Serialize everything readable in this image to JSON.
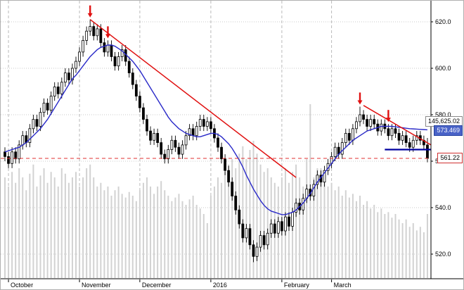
{
  "chart_data": {
    "type": "candlestick",
    "title": "",
    "xlabel": "",
    "ylabel": "",
    "ylim": [
      512,
      628
    ],
    "grid": true,
    "colors": {
      "up_candle": "#ffffff",
      "down_candle": "#000000",
      "candle_border": "#000000",
      "ma_line": "#2929c8",
      "support_line": "#0000a0",
      "trend_line": "#e01010",
      "last_price_line": "#e03030",
      "volume_bar": "#d2d2d2",
      "grid_line": "#c9c9c9",
      "month_line": "#b9b9b9",
      "axis_line": "#000000",
      "arrow": "#e01010"
    },
    "y_ticks": [
      {
        "value": 620,
        "label": "620.0"
      },
      {
        "value": 600,
        "label": "600.0"
      },
      {
        "value": 580,
        "label": "580.0"
      },
      {
        "value": 560,
        "label": "560.0"
      },
      {
        "value": 540,
        "label": "540.0"
      },
      {
        "value": 520,
        "label": "520.0"
      }
    ],
    "months": [
      {
        "label": "October",
        "start_index": 1
      },
      {
        "label": "November",
        "start_index": 21
      },
      {
        "label": "December",
        "start_index": 38
      },
      {
        "label": "2016",
        "start_index": 58
      },
      {
        "label": "February",
        "start_index": 78
      },
      {
        "label": "March",
        "start_index": 92
      }
    ],
    "labels": {
      "indicator": "145,625.02",
      "ma": "573.469",
      "last": "561.22"
    },
    "ma_value": 573.469,
    "last_price": 561.22,
    "support_line": {
      "price": 565,
      "from_index": 107
    },
    "trend_lines": [
      {
        "from_index": 24,
        "from_price": 621,
        "to_index": 82,
        "to_price": 553
      },
      {
        "from_index": 101,
        "from_price": 584,
        "to_index": 120,
        "to_price": 567
      }
    ],
    "arrow_indices": [
      24,
      29,
      100,
      108
    ],
    "candles": [
      [
        564,
        566,
        560,
        562
      ],
      [
        562,
        564,
        557,
        559
      ],
      [
        559,
        566,
        557,
        564
      ],
      [
        564,
        566,
        559,
        561
      ],
      [
        561,
        569,
        559,
        567
      ],
      [
        567,
        573,
        565,
        571
      ],
      [
        571,
        573,
        566,
        568
      ],
      [
        568,
        576,
        566,
        574
      ],
      [
        574,
        580,
        572,
        578
      ],
      [
        578,
        580,
        573,
        575
      ],
      [
        575,
        583,
        573,
        581
      ],
      [
        581,
        587,
        579,
        585
      ],
      [
        585,
        587,
        580,
        582
      ],
      [
        582,
        590,
        580,
        588
      ],
      [
        588,
        594,
        586,
        592
      ],
      [
        592,
        594,
        587,
        589
      ],
      [
        589,
        596,
        587,
        594
      ],
      [
        594,
        600,
        592,
        598
      ],
      [
        598,
        600,
        593,
        595
      ],
      [
        595,
        602,
        593,
        600
      ],
      [
        600,
        605,
        598,
        603
      ],
      [
        603,
        609,
        601,
        607
      ],
      [
        607,
        614,
        605,
        612
      ],
      [
        612,
        618,
        610,
        616
      ],
      [
        616,
        621,
        614,
        618
      ],
      [
        618,
        620,
        612,
        614
      ],
      [
        614,
        619,
        612,
        617
      ],
      [
        617,
        619,
        609,
        611
      ],
      [
        611,
        613,
        605,
        607
      ],
      [
        607,
        612,
        605,
        610
      ],
      [
        610,
        612,
        603,
        605
      ],
      [
        605,
        607,
        599,
        601
      ],
      [
        601,
        607,
        599,
        605
      ],
      [
        605,
        610,
        603,
        608
      ],
      [
        608,
        610,
        601,
        603
      ],
      [
        603,
        605,
        596,
        598
      ],
      [
        598,
        600,
        591,
        593
      ],
      [
        593,
        595,
        586,
        588
      ],
      [
        588,
        590,
        581,
        583
      ],
      [
        583,
        585,
        576,
        578
      ],
      [
        578,
        580,
        571,
        573
      ],
      [
        573,
        575,
        567,
        569
      ],
      [
        569,
        574,
        567,
        572
      ],
      [
        572,
        574,
        566,
        568
      ],
      [
        568,
        570,
        561,
        563
      ],
      [
        563,
        565,
        559,
        561
      ],
      [
        561,
        567,
        559,
        565
      ],
      [
        565,
        571,
        563,
        569
      ],
      [
        569,
        571,
        564,
        566
      ],
      [
        566,
        568,
        561,
        563
      ],
      [
        563,
        569,
        561,
        567
      ],
      [
        567,
        573,
        565,
        571
      ],
      [
        571,
        576,
        569,
        574
      ],
      [
        574,
        576,
        569,
        571
      ],
      [
        571,
        577,
        569,
        575
      ],
      [
        575,
        580,
        573,
        578
      ],
      [
        578,
        580,
        573,
        575
      ],
      [
        575,
        579,
        573,
        577
      ],
      [
        577,
        579,
        572,
        574
      ],
      [
        574,
        576,
        568,
        570
      ],
      [
        570,
        572,
        564,
        566
      ],
      [
        566,
        568,
        559,
        561
      ],
      [
        561,
        563,
        554,
        556
      ],
      [
        556,
        558,
        549,
        551
      ],
      [
        551,
        553,
        543,
        545
      ],
      [
        545,
        547,
        537,
        539
      ],
      [
        539,
        541,
        531,
        533
      ],
      [
        533,
        535,
        525,
        527
      ],
      [
        527,
        533,
        525,
        531
      ],
      [
        531,
        533,
        522,
        524
      ],
      [
        524,
        526,
        516.5,
        519
      ],
      [
        519,
        525,
        517,
        523
      ],
      [
        523,
        530,
        521,
        528
      ],
      [
        528,
        530,
        522,
        524
      ],
      [
        524,
        531,
        522,
        529
      ],
      [
        529,
        535,
        527,
        533
      ],
      [
        533,
        535,
        527,
        529
      ],
      [
        529,
        536,
        527,
        534
      ],
      [
        534,
        536,
        528,
        530
      ],
      [
        530,
        538,
        528,
        536
      ],
      [
        536,
        538,
        530,
        532
      ],
      [
        532,
        540,
        530,
        538
      ],
      [
        538,
        544,
        536,
        542
      ],
      [
        542,
        544,
        537,
        539
      ],
      [
        539,
        546,
        537,
        544
      ],
      [
        544,
        550,
        542,
        548
      ],
      [
        548,
        550,
        543,
        545
      ],
      [
        545,
        552,
        543,
        550
      ],
      [
        550,
        556,
        548,
        554
      ],
      [
        554,
        556,
        549,
        551
      ],
      [
        551,
        558,
        549,
        556
      ],
      [
        556,
        561,
        554,
        559
      ],
      [
        559,
        564,
        557,
        562
      ],
      [
        562,
        568,
        560,
        566
      ],
      [
        566,
        568,
        561,
        563
      ],
      [
        563,
        570,
        561,
        568
      ],
      [
        568,
        574,
        566,
        572
      ],
      [
        572,
        574,
        567,
        569
      ],
      [
        569,
        576,
        567,
        574
      ],
      [
        574,
        579,
        572,
        577
      ],
      [
        577,
        583.5,
        575,
        580
      ],
      [
        580,
        582,
        576,
        578
      ],
      [
        578,
        580,
        573,
        575
      ],
      [
        575,
        580,
        573,
        578
      ],
      [
        578,
        580,
        574,
        576
      ],
      [
        576,
        578,
        571,
        573
      ],
      [
        573,
        578,
        571,
        576
      ],
      [
        576,
        578,
        572,
        574
      ],
      [
        574,
        576,
        569,
        571
      ],
      [
        571,
        576,
        569,
        574
      ],
      [
        574,
        576,
        570,
        572
      ],
      [
        572,
        574,
        567,
        569
      ],
      [
        569,
        573,
        567,
        571
      ],
      [
        571,
        573,
        566,
        568
      ],
      [
        568,
        570,
        564,
        566
      ],
      [
        566,
        571,
        564,
        569
      ],
      [
        569,
        573,
        567,
        571
      ],
      [
        571,
        573,
        567,
        569
      ],
      [
        569,
        571,
        565,
        567
      ],
      [
        567,
        570,
        559.5,
        561.2
      ]
    ],
    "ma": [
      564,
      564.5,
      565,
      565.5,
      566,
      567,
      568,
      569.5,
      571,
      572.5,
      574,
      576,
      578,
      580.5,
      583,
      585.5,
      588,
      590.5,
      593,
      595.5,
      597,
      599,
      601,
      603,
      605,
      606.5,
      608,
      609,
      609.5,
      610,
      610,
      609.5,
      608.5,
      607.5,
      606,
      604.5,
      603,
      601,
      599,
      596.5,
      594,
      591.5,
      589,
      586.5,
      584,
      581.5,
      579,
      577,
      575.5,
      574,
      573,
      572,
      571.5,
      571,
      570.5,
      570.5,
      571,
      571.5,
      572,
      572,
      571.5,
      570.5,
      569,
      567.5,
      565.5,
      563,
      560.5,
      557.5,
      554,
      551,
      548,
      545.5,
      543,
      541,
      539.5,
      538.5,
      538,
      537.5,
      537,
      537,
      537.5,
      538,
      539,
      540.5,
      542,
      544,
      546,
      548.5,
      551,
      553,
      555,
      557,
      559,
      561,
      563,
      564.5,
      566,
      567.5,
      569,
      570,
      571,
      572,
      573,
      573.5,
      574,
      574.5,
      575,
      575,
      575,
      575,
      574.8,
      574.6,
      574.4,
      574.2,
      574,
      573.9,
      573.8,
      573.7,
      573.6,
      573.5
    ],
    "volume": [
      0.55,
      0.5,
      0.58,
      0.52,
      0.6,
      0.55,
      0.48,
      0.57,
      0.62,
      0.5,
      0.56,
      0.6,
      0.52,
      0.58,
      0.55,
      0.5,
      0.6,
      0.57,
      0.52,
      0.55,
      0.58,
      0.5,
      0.55,
      0.6,
      0.62,
      0.55,
      0.5,
      0.52,
      0.48,
      0.5,
      0.45,
      0.48,
      0.5,
      0.46,
      0.44,
      0.47,
      0.45,
      0.42,
      0.48,
      0.52,
      0.55,
      0.5,
      0.46,
      0.5,
      0.53,
      0.48,
      0.45,
      0.42,
      0.44,
      0.46,
      0.42,
      0.4,
      0.43,
      0.45,
      0.4,
      0.38,
      0.35,
      0.3,
      0.45,
      0.5,
      0.55,
      0.52,
      0.58,
      0.62,
      0.65,
      0.6,
      0.68,
      0.72,
      0.65,
      0.7,
      0.75,
      0.68,
      0.62,
      0.58,
      0.6,
      0.55,
      0.52,
      0.5,
      0.55,
      0.6,
      0.52,
      0.58,
      0.62,
      0.55,
      0.5,
      0.65,
      0.95,
      0.55,
      0.6,
      0.6,
      0.55,
      0.5,
      0.52,
      0.48,
      0.5,
      0.45,
      0.48,
      0.44,
      0.46,
      0.42,
      0.45,
      0.4,
      0.42,
      0.38,
      0.4,
      0.36,
      0.38,
      0.35,
      0.36,
      0.33,
      0.35,
      0.32,
      0.3,
      0.32,
      0.28,
      0.3,
      0.26,
      0.28,
      0.25,
      0.35
    ]
  }
}
